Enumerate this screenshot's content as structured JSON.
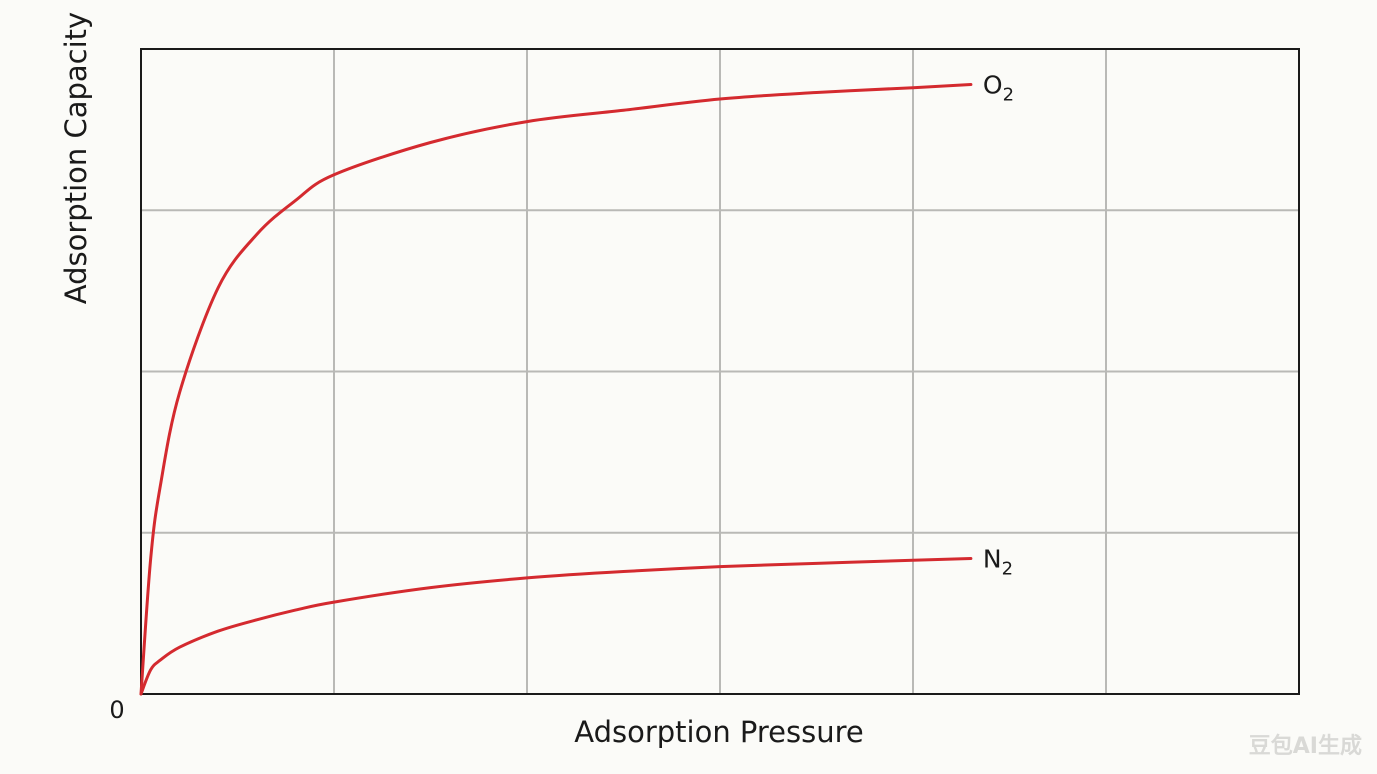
{
  "chart_data": {
    "type": "line",
    "xlabel": "Adsorption Pressure",
    "ylabel": "Adsorption Capacity",
    "origin_label": "0",
    "xlim": [
      0,
      6
    ],
    "ylim": [
      0,
      4
    ],
    "grid": true,
    "legend": "inline-right",
    "series": [
      {
        "name": "O",
        "subscript": "2",
        "color": "#d42a2f",
        "x": [
          0,
          0.05,
          0.1,
          0.2,
          0.4,
          0.6,
          0.8,
          1.0,
          1.5,
          2.0,
          2.5,
          3.0,
          3.5,
          4.0,
          4.3
        ],
        "y": [
          0,
          0.84,
          1.29,
          1.87,
          2.52,
          2.85,
          3.06,
          3.22,
          3.42,
          3.55,
          3.62,
          3.69,
          3.73,
          3.76,
          3.78
        ]
      },
      {
        "name": "N",
        "subscript": "2",
        "color": "#d42a2f",
        "x": [
          0,
          0.05,
          0.1,
          0.2,
          0.4,
          0.6,
          0.8,
          1.0,
          1.5,
          2.0,
          2.5,
          3.0,
          3.5,
          4.0,
          4.3
        ],
        "y": [
          0,
          0.15,
          0.21,
          0.29,
          0.39,
          0.46,
          0.52,
          0.57,
          0.66,
          0.72,
          0.76,
          0.79,
          0.81,
          0.83,
          0.84
        ]
      }
    ]
  },
  "watermark": "豆包AI生成"
}
